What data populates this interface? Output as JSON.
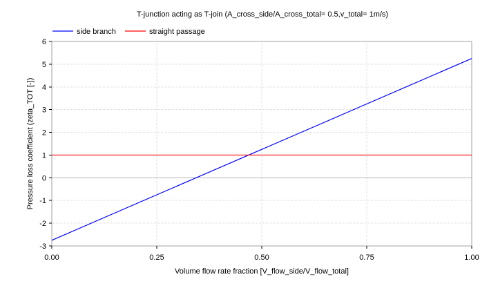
{
  "chart_data": {
    "type": "line",
    "title": "T-junction acting as T-join (A_cross_side/A_cross_total= 0.5,v_total= 1m/s)",
    "xlabel": "Volume flow rate fraction [V_flow_side/V_flow_total]",
    "ylabel": "Pressure loss coefficient (zeta_TOT [-])",
    "xlim": [
      0.0,
      1.0
    ],
    "ylim": [
      -3,
      6
    ],
    "x_ticks": [
      {
        "value": 0.0,
        "label": "0.00"
      },
      {
        "value": 0.25,
        "label": "0.25"
      },
      {
        "value": 0.5,
        "label": "0.50"
      },
      {
        "value": 0.75,
        "label": "0.75"
      },
      {
        "value": 1.0,
        "label": "1.00"
      }
    ],
    "y_ticks": [
      {
        "value": -3,
        "label": "-3"
      },
      {
        "value": -2,
        "label": "-2"
      },
      {
        "value": -1,
        "label": "-1"
      },
      {
        "value": 0,
        "label": "0"
      },
      {
        "value": 1,
        "label": "1"
      },
      {
        "value": 2,
        "label": "2"
      },
      {
        "value": 3,
        "label": "3"
      },
      {
        "value": 4,
        "label": "4"
      },
      {
        "value": 5,
        "label": "5"
      },
      {
        "value": 6,
        "label": "6"
      }
    ],
    "grid": true,
    "legend_position": "top-left",
    "series": [
      {
        "name": "side branch",
        "color": "#0000ff",
        "x": [
          0.0,
          1.0
        ],
        "y": [
          -2.75,
          5.25
        ]
      },
      {
        "name": "straight passage",
        "color": "#ff0000",
        "x": [
          0.0,
          1.0
        ],
        "y": [
          1.0,
          1.0
        ]
      }
    ]
  }
}
